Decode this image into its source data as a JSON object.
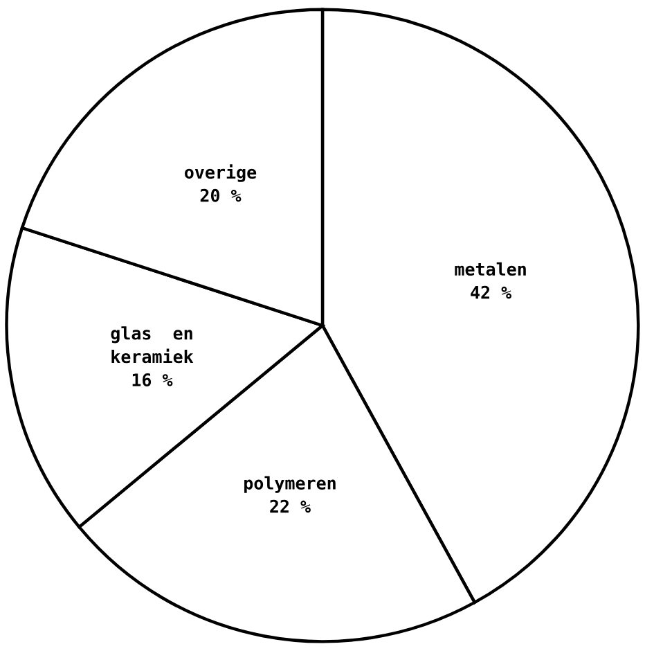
{
  "chart_data": {
    "type": "pie",
    "categories": [
      "metalen",
      "polymeren",
      "glas  en\nkeramiek",
      "overige"
    ],
    "values": [
      42,
      22,
      16,
      20
    ],
    "value_labels": [
      "42 %",
      "22 %",
      "16 %",
      "20 %"
    ],
    "colors": [
      "#ffffff",
      "#ffffff",
      "#ffffff",
      "#ffffff"
    ],
    "legend": false
  }
}
